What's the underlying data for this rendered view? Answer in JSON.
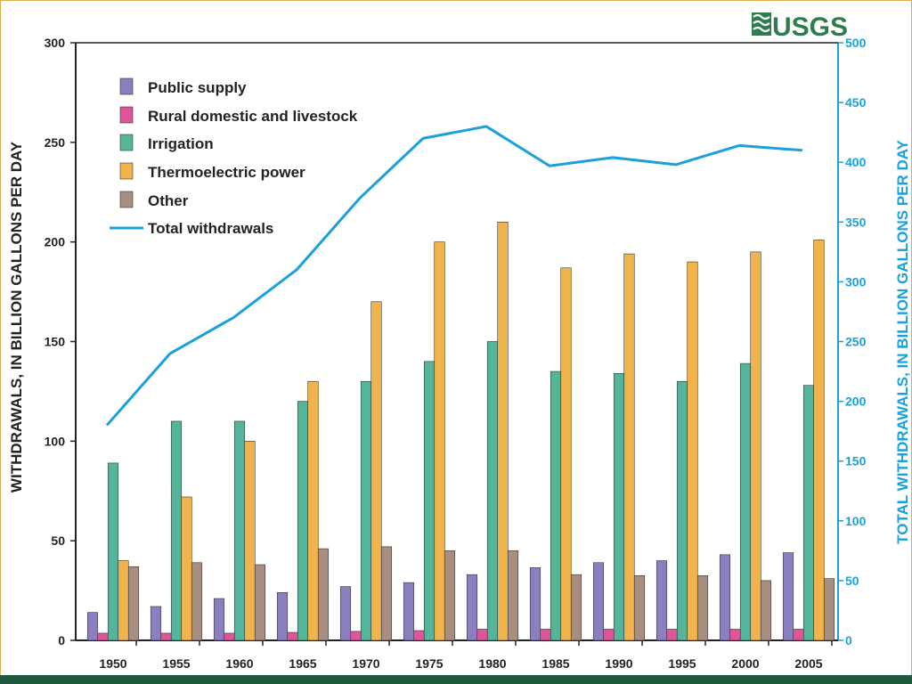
{
  "logo": {
    "text": "USGS",
    "color": "#2e7d4f"
  },
  "colors": {
    "public_supply": "#8b7fbf",
    "rural": "#e0549a",
    "irrigation": "#55b59b",
    "thermoelectric": "#f1b44c",
    "other": "#a88e80",
    "total": "#1aa1db",
    "background": "#ffffff",
    "bottom_band": "#1f5a3f"
  },
  "chart_data": {
    "type": "bar",
    "title": "",
    "ylabel": "WITHDRAWALS, IN BILLION GALLONS PER DAY",
    "ylabel_right": "TOTAL WITHDRAWALS, IN BILLION GALLONS PER DAY",
    "ylim": [
      0,
      300
    ],
    "ylim_right": [
      0,
      500
    ],
    "yticks": [
      "0",
      "50",
      "100",
      "150",
      "200",
      "250",
      "300"
    ],
    "yticks_right": [
      "0",
      "50",
      "100",
      "150",
      "200",
      "250",
      "300",
      "350",
      "400",
      "450",
      "500"
    ],
    "categories": [
      "1950",
      "1955",
      "1960",
      "1965",
      "1970",
      "1975",
      "1980",
      "1985",
      "1990",
      "1995",
      "2000",
      "2005"
    ],
    "series": [
      {
        "name": "Public supply",
        "key": "public_supply",
        "values": [
          14,
          17,
          21,
          24,
          27,
          29,
          33,
          36.5,
          39,
          40,
          43,
          44
        ]
      },
      {
        "name": "Rural domestic and livestock",
        "key": "rural",
        "values": [
          3.6,
          3.6,
          3.6,
          4,
          4.5,
          4.9,
          5.6,
          5.6,
          5.6,
          5.6,
          5.6,
          5.6
        ]
      },
      {
        "name": "Irrigation",
        "key": "irrigation",
        "values": [
          89,
          110,
          110,
          120,
          130,
          140,
          150,
          135,
          134,
          130,
          139,
          128
        ]
      },
      {
        "name": "Thermoelectric power",
        "key": "thermoelectric",
        "values": [
          40,
          72,
          100,
          130,
          170,
          200,
          210,
          187,
          194,
          190,
          195,
          201
        ]
      },
      {
        "name": "Other",
        "key": "other",
        "values": [
          37,
          39,
          38,
          46,
          47,
          45,
          45,
          33,
          32.5,
          32.5,
          30,
          31
        ]
      }
    ],
    "line": {
      "name": "Total withdrawals",
      "axis": "right",
      "values": [
        180,
        240,
        270,
        310,
        370,
        420,
        430,
        397,
        404,
        398,
        414,
        410
      ]
    },
    "legend_position": "top-left",
    "grid": false
  }
}
